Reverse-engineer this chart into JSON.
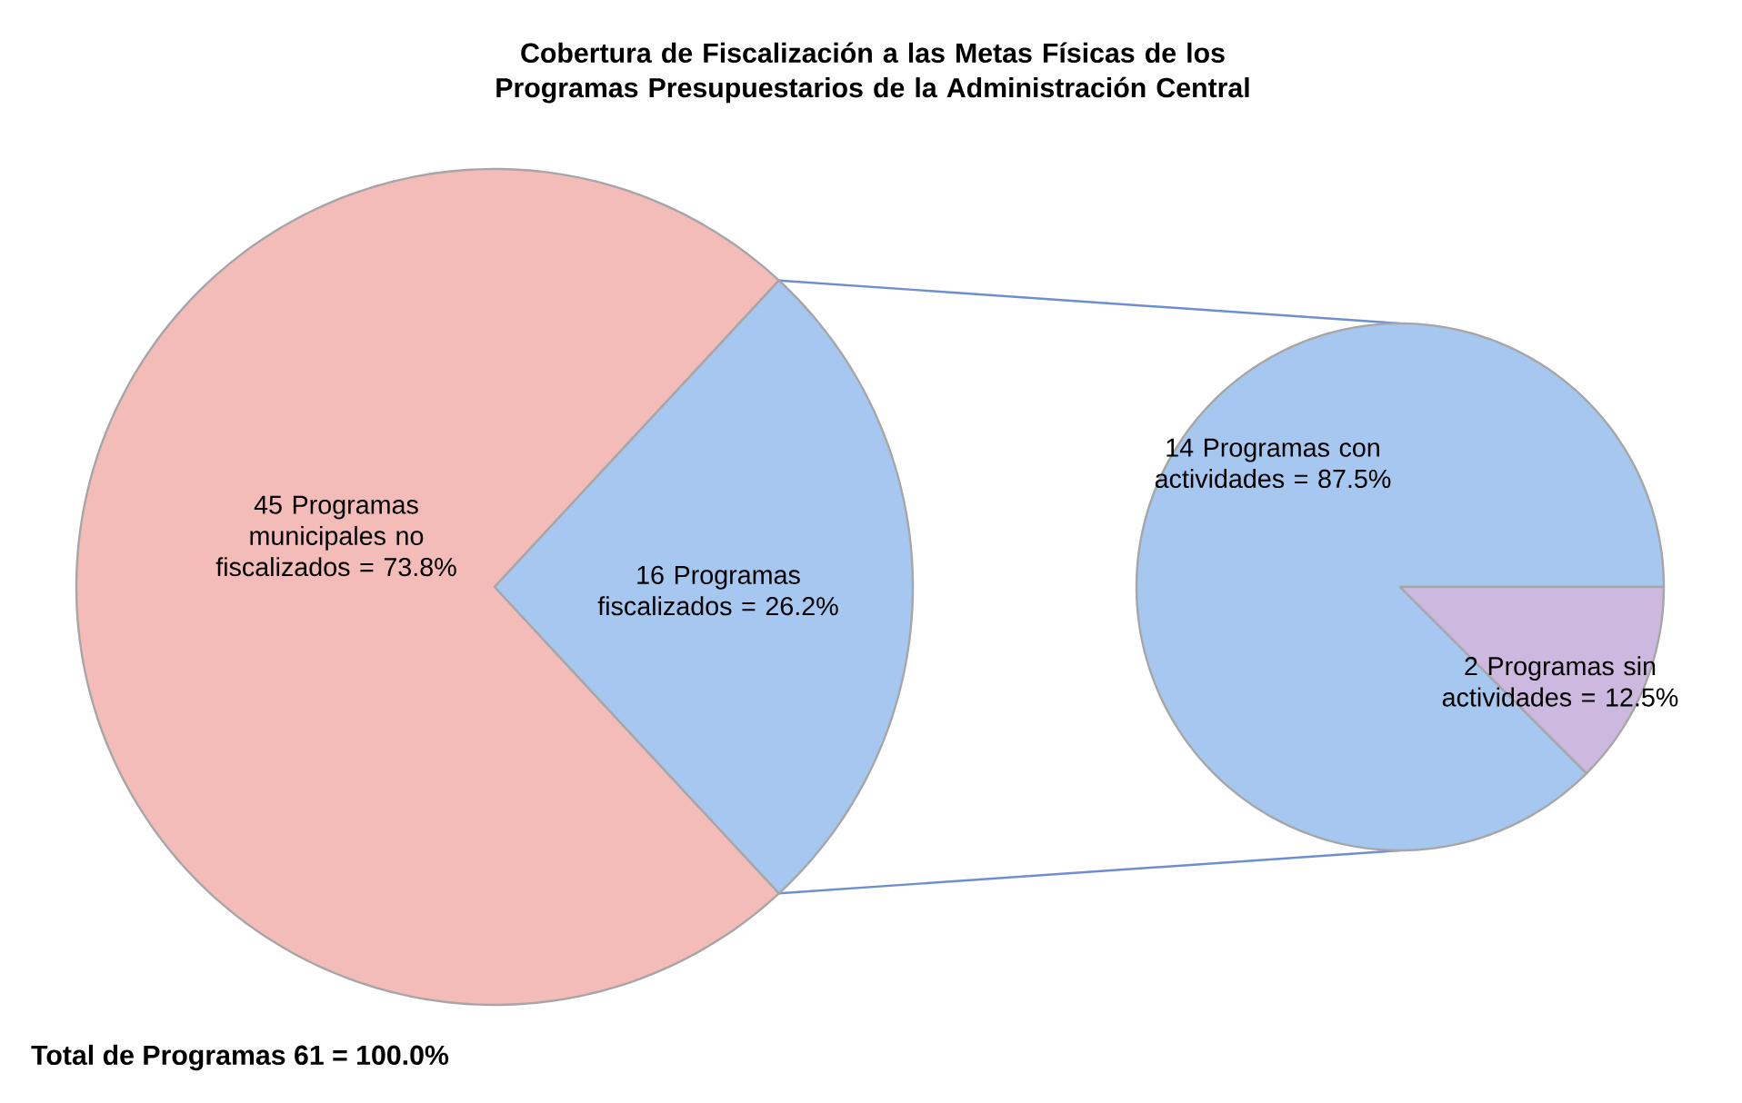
{
  "chart_data": [
    {
      "type": "pie",
      "title": "Cobertura de Fiscalización a las Metas Físicas de los Programas Presupuestarios de la Administración Central",
      "categories": [
        "45 Programas municipales no fiscalizados = 73.8%",
        "16 Programas fiscalizados = 26.2%"
      ],
      "values": [
        73.8,
        26.2
      ],
      "colors": [
        "#f4bcb8",
        "#a6c8f0"
      ],
      "annotations": [
        "Total de Programas 61 = 100.0%"
      ]
    },
    {
      "type": "pie",
      "categories": [
        "14 Programas con actividades = 87.5%",
        "2 Programas sin actividades = 12.5%"
      ],
      "values": [
        87.5,
        12.5
      ],
      "colors": [
        "#a6c8f0",
        "#cdb8e0"
      ]
    }
  ]
}
